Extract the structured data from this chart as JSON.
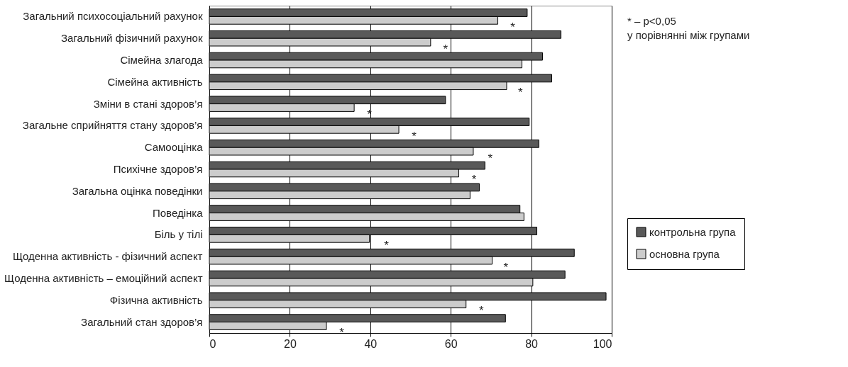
{
  "chart_data": {
    "type": "bar",
    "orientation": "horizontal",
    "categories": [
      "Загальний психосоціальний рахунок",
      "Загальний фізичний рахунок",
      "Сімейна злагода",
      "Сімейна активність",
      "Зміни в стані здоров’я",
      "Загальне сприйняття стану здоров’я",
      "Самооцінка",
      "Психічне здоров’я",
      "Загальна оцінка поведінки",
      "Поведінка",
      "Біль у тілі",
      "Щоденна активність - фізичний аспект",
      "Щоденна активність – емоційний аспект",
      "Фізична активність",
      "Загальний стан здоров’я"
    ],
    "series": [
      {
        "name": "контрольна група",
        "color": "#595959",
        "values": [
          79.0,
          87.4,
          82.8,
          85.1,
          58.7,
          79.5,
          81.9,
          68.5,
          67.1,
          77.2,
          81.4,
          90.7,
          88.4,
          98.6,
          73.6
        ]
      },
      {
        "name": "основна група",
        "color": "#cccccc",
        "values": [
          71.7,
          55.0,
          77.7,
          73.9,
          36.0,
          47.1,
          65.6,
          62.0,
          64.8,
          78.2,
          39.8,
          70.3,
          80.4,
          63.8,
          29.1
        ]
      }
    ],
    "xlim": [
      0,
      100
    ],
    "xticks": [
      0,
      20,
      40,
      60,
      80,
      100
    ],
    "grid": "x",
    "legend": "right",
    "annotations": [
      "* – p<0,05\nу порівнянні між групами",
      {
        "text": "*",
        "x": 75.4,
        "y": "Загальний психосоціальний рахунок"
      },
      {
        "text": "*",
        "x": 58.7,
        "y": "Загальний фізичний рахунок"
      },
      {
        "text": "*",
        "x": 77.3,
        "y": "Сімейна активність"
      },
      {
        "text": "*",
        "x": 39.8,
        "y": "Зміни в стані здоров’я"
      },
      {
        "text": "*",
        "x": 50.9,
        "y": "Загальне сприйняття стану здоров’я"
      },
      {
        "text": "*",
        "x": 69.8,
        "y": "Самооцінка"
      },
      {
        "text": "*",
        "x": 65.8,
        "y": "Психічне здоров’я"
      },
      {
        "text": "*",
        "x": 44.0,
        "y": "Біль у тілі"
      },
      {
        "text": "*",
        "x": 73.7,
        "y": "Щоденна активність - фізичний аспект"
      },
      {
        "text": "*",
        "x": 67.6,
        "y": "Фізична активність"
      },
      {
        "text": "*",
        "x": 32.9,
        "y": "Загальний стан здоров’я"
      }
    ]
  }
}
